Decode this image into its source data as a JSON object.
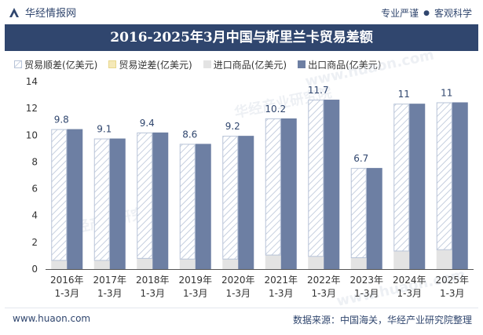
{
  "header": {
    "brand": "华经情报网",
    "tagline_left": "专业严谨",
    "tagline_right": "客观科学",
    "tagline_dot": "●"
  },
  "colors": {
    "export": "#6d7fa3",
    "surplus_fill": "#ffffff",
    "surplus_hatch": "#b8c4d8",
    "import": "#e3e3e3",
    "deficit": "#f5e9b8",
    "title_bg": "#30466e"
  },
  "chart_data": {
    "type": "bar",
    "title": "2016-2025年3月中国与斯里兰卡贸易差额",
    "categories": [
      [
        "2016年",
        "1-3月"
      ],
      [
        "2017年",
        "1-3月"
      ],
      [
        "2018年",
        "1-3月"
      ],
      [
        "2019年",
        "1-3月"
      ],
      [
        "2020年",
        "1-3月"
      ],
      [
        "2021年",
        "1-3月"
      ],
      [
        "2022年",
        "1-3月"
      ],
      [
        "2023年",
        "1-3月"
      ],
      [
        "2024年",
        "1-3月"
      ],
      [
        "2025年",
        "1-3月"
      ]
    ],
    "series": [
      {
        "name": "贸易顺差(亿美元)",
        "values": [
          9.8,
          9.1,
          9.4,
          8.6,
          9.2,
          10.2,
          11.7,
          6.7,
          11,
          11
        ]
      },
      {
        "name": "贸易逆差(亿美元)",
        "values": [
          0,
          0,
          0,
          0,
          0,
          0,
          0,
          0,
          0,
          0
        ]
      },
      {
        "name": "进口商品(亿美元)",
        "values": [
          0.65,
          0.65,
          0.8,
          0.75,
          0.75,
          1.05,
          0.95,
          0.85,
          1.35,
          1.45
        ]
      },
      {
        "name": "出口商品(亿美元)",
        "values": [
          10.45,
          9.75,
          10.2,
          9.35,
          9.95,
          11.25,
          12.65,
          7.55,
          12.35,
          12.45
        ]
      }
    ],
    "data_labels": [
      "9.8",
      "9.1",
      "9.4",
      "8.6",
      "9.2",
      "10.2",
      "11.7",
      "6.7",
      "11",
      "11"
    ],
    "ylim": [
      0,
      14
    ],
    "yticks": [
      0,
      2,
      4,
      6,
      8,
      10,
      12,
      14
    ],
    "legend_position": "top-left",
    "grid": false
  },
  "watermarks": [
    "华经产业研究院",
    "www.huaon.com"
  ],
  "footer": {
    "url": "www.huaon.com",
    "source": "数据来源：中国海关，华经产业研究院整理"
  }
}
